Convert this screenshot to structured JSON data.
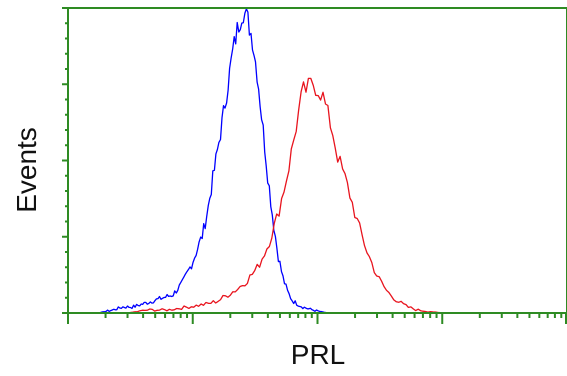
{
  "chart_data": {
    "type": "line",
    "xlabel": "PRL",
    "ylabel": "Events",
    "axis_color": "#2e8b23",
    "grid": false,
    "legend": "none",
    "xlim": [
      0,
      1
    ],
    "ylim": [
      0,
      1
    ],
    "series": [
      {
        "color": "#0000ff",
        "x": [
          0.0,
          0.03,
          0.06,
          0.09,
          0.11,
          0.13,
          0.15,
          0.17,
          0.19,
          0.21,
          0.23,
          0.25,
          0.27,
          0.28,
          0.29,
          0.3,
          0.31,
          0.32,
          0.33,
          0.34,
          0.35,
          0.36,
          0.37,
          0.38,
          0.39,
          0.4,
          0.41,
          0.42,
          0.43,
          0.44,
          0.45,
          0.47,
          0.49,
          0.52,
          0.55
        ],
        "values": [
          0.0,
          0.0,
          0.0,
          0.01,
          0.02,
          0.02,
          0.03,
          0.04,
          0.05,
          0.06,
          0.1,
          0.17,
          0.26,
          0.34,
          0.44,
          0.54,
          0.64,
          0.75,
          0.86,
          0.94,
          1.0,
          0.97,
          0.9,
          0.78,
          0.62,
          0.46,
          0.32,
          0.2,
          0.12,
          0.07,
          0.04,
          0.02,
          0.01,
          0.0,
          0.0
        ]
      },
      {
        "color": "#e8141e",
        "x": [
          0.12,
          0.16,
          0.2,
          0.24,
          0.28,
          0.3,
          0.32,
          0.34,
          0.36,
          0.38,
          0.4,
          0.41,
          0.42,
          0.43,
          0.44,
          0.45,
          0.46,
          0.47,
          0.48,
          0.49,
          0.5,
          0.51,
          0.52,
          0.53,
          0.54,
          0.56,
          0.58,
          0.6,
          0.62,
          0.64,
          0.66,
          0.68,
          0.7,
          0.75,
          0.8,
          0.9,
          1.0
        ],
        "values": [
          0.0,
          0.01,
          0.01,
          0.02,
          0.03,
          0.04,
          0.06,
          0.08,
          0.11,
          0.15,
          0.22,
          0.27,
          0.32,
          0.39,
          0.46,
          0.55,
          0.64,
          0.73,
          0.74,
          0.76,
          0.74,
          0.72,
          0.66,
          0.6,
          0.52,
          0.42,
          0.3,
          0.2,
          0.12,
          0.07,
          0.04,
          0.02,
          0.01,
          0.0,
          0.0,
          0.0,
          0.0
        ]
      }
    ]
  }
}
